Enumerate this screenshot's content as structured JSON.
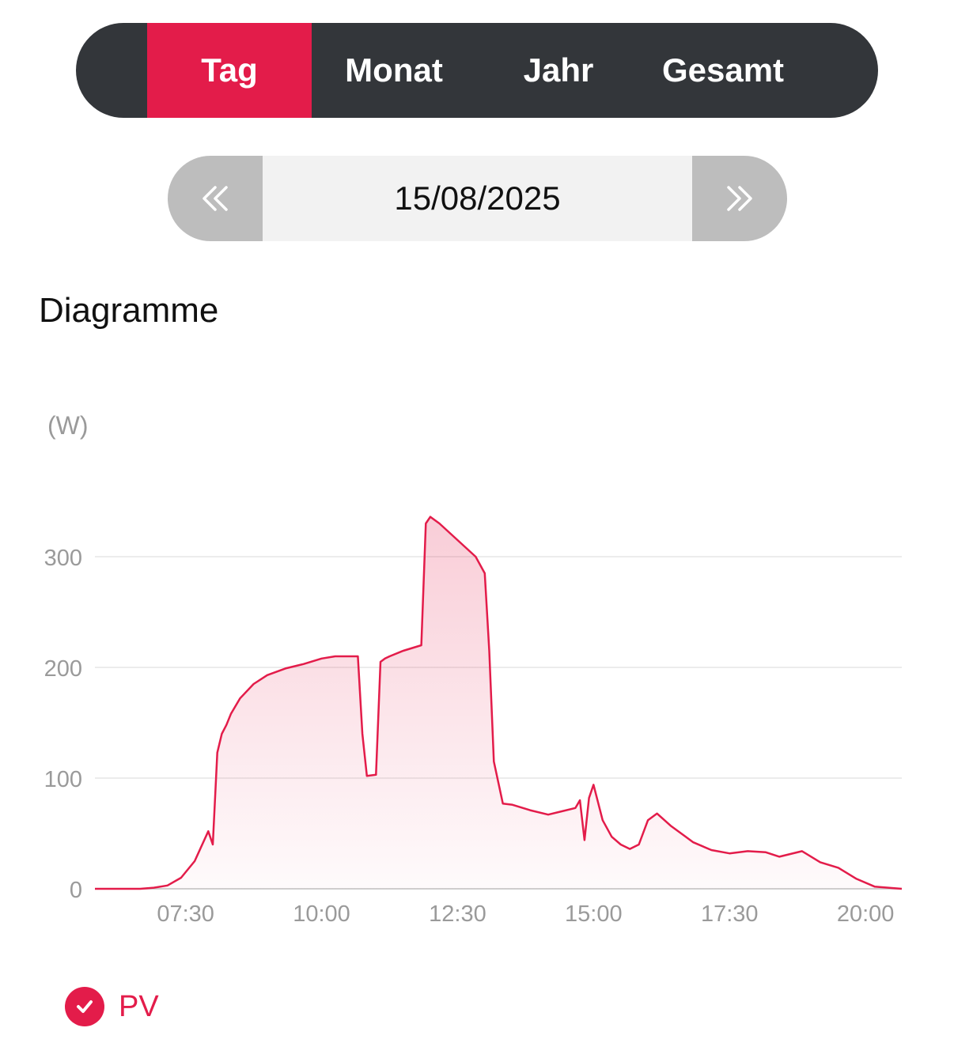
{
  "period_tabs": [
    {
      "label": "Tag",
      "active": true
    },
    {
      "label": "Monat",
      "active": false
    },
    {
      "label": "Jahr",
      "active": false
    },
    {
      "label": "Gesamt",
      "active": false
    }
  ],
  "date_nav": {
    "date": "15/08/2025",
    "prev_icon": "double-chevron-left-icon",
    "next_icon": "double-chevron-right-icon"
  },
  "section_title": "Diagramme",
  "unit_label": "(W)",
  "colors": {
    "accent": "#e31c4a",
    "dark": "#33363a",
    "nav_button": "#bdbdbd",
    "grid": "#e6e6e6",
    "tick": "#9a9a9a"
  },
  "legend": {
    "label": "PV",
    "checked": true,
    "icon": "check-circle-icon"
  },
  "chart_data": {
    "type": "area",
    "ylabel": "(W)",
    "ylim": [
      0,
      340
    ],
    "y_ticks": [
      0,
      100,
      200,
      300
    ],
    "x_ticks": [
      "07:30",
      "10:00",
      "12:30",
      "15:00",
      "17:30",
      "20:00"
    ],
    "x_range": [
      "05:50",
      "20:40"
    ],
    "grid": true,
    "series": [
      {
        "name": "PV",
        "x": [
          "05:50",
          "06:40",
          "06:55",
          "07:10",
          "07:25",
          "07:40",
          "07:55",
          "08:00",
          "08:05",
          "08:10",
          "08:15",
          "08:20",
          "08:30",
          "08:45",
          "09:00",
          "09:20",
          "09:40",
          "10:00",
          "10:15",
          "10:30",
          "10:40",
          "10:45",
          "10:50",
          "11:00",
          "11:05",
          "11:10",
          "11:15",
          "11:30",
          "11:50",
          "11:55",
          "12:00",
          "12:10",
          "12:30",
          "12:50",
          "13:00",
          "13:05",
          "13:10",
          "13:20",
          "13:30",
          "13:50",
          "14:10",
          "14:25",
          "14:40",
          "14:45",
          "14:50",
          "14:55",
          "15:00",
          "15:10",
          "15:20",
          "15:30",
          "15:40",
          "15:50",
          "16:00",
          "16:10",
          "16:25",
          "16:40",
          "16:50",
          "17:10",
          "17:30",
          "17:50",
          "18:10",
          "18:25",
          "18:50",
          "19:10",
          "19:30",
          "19:50",
          "20:10",
          "20:40"
        ],
        "values": [
          0,
          0,
          1,
          3,
          10,
          25,
          52,
          40,
          123,
          140,
          148,
          158,
          172,
          185,
          193,
          199,
          203,
          208,
          210,
          210,
          210,
          140,
          102,
          103,
          205,
          208,
          210,
          215,
          220,
          330,
          336,
          330,
          315,
          300,
          285,
          215,
          115,
          77,
          76,
          71,
          67,
          70,
          73,
          80,
          44,
          82,
          94,
          62,
          47,
          40,
          36,
          40,
          62,
          68,
          57,
          48,
          42,
          35,
          32,
          34,
          33,
          29,
          34,
          24,
          19,
          9,
          2,
          0
        ]
      }
    ]
  }
}
